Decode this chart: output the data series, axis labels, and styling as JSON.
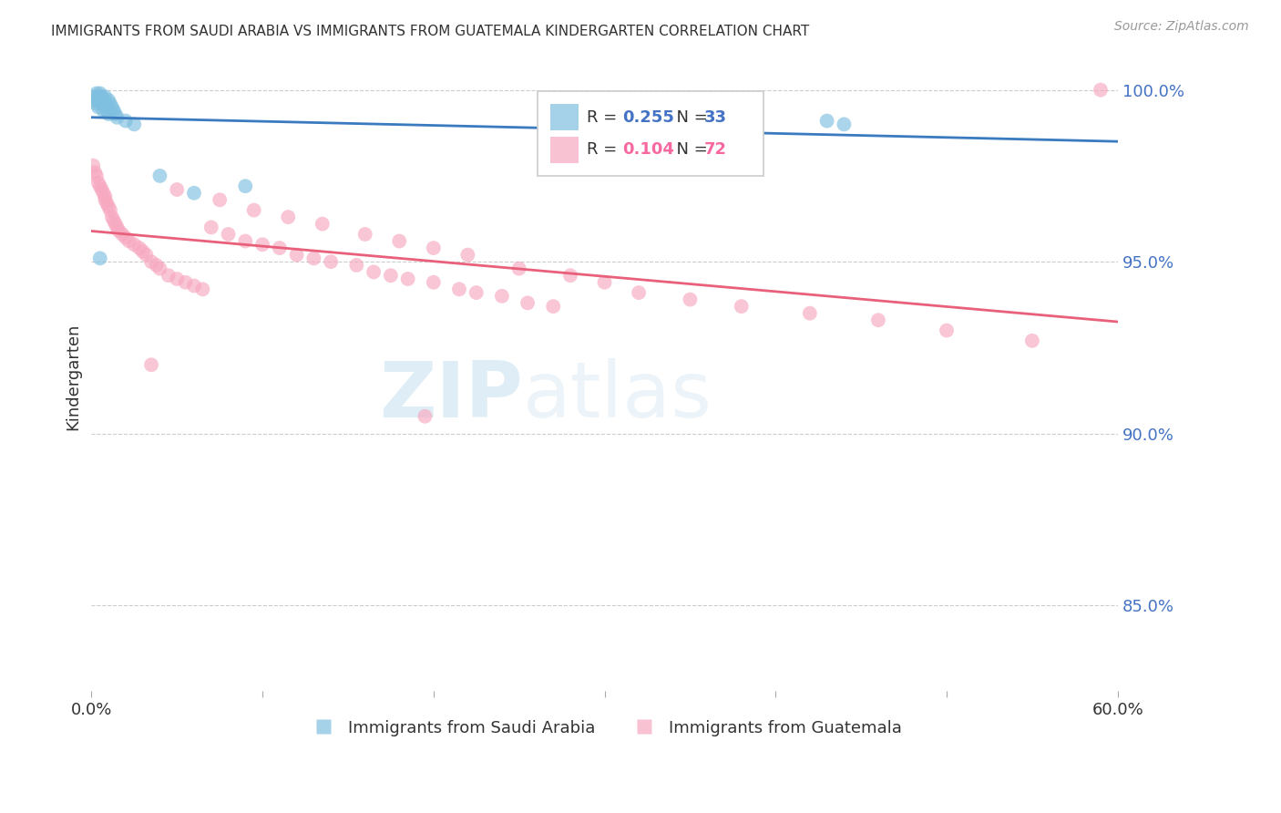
{
  "title": "IMMIGRANTS FROM SAUDI ARABIA VS IMMIGRANTS FROM GUATEMALA KINDERGARTEN CORRELATION CHART",
  "source": "Source: ZipAtlas.com",
  "ylabel": "Kindergarten",
  "watermark": "ZIPatlas",
  "xlim": [
    0.0,
    0.6
  ],
  "ylim": [
    0.825,
    1.008
  ],
  "yticks": [
    0.85,
    0.9,
    0.95,
    1.0
  ],
  "ytick_labels": [
    "85.0%",
    "90.0%",
    "95.0%",
    "100.0%"
  ],
  "xtick_labels": [
    "0.0%",
    "",
    "",
    "",
    "",
    "",
    "60.0%"
  ],
  "saudi_R": 0.255,
  "saudi_N": 33,
  "guate_R": 0.104,
  "guate_N": 72,
  "saudi_color": "#7fbfdf",
  "guate_color": "#f7a8c0",
  "saudi_line_color": "#3a7abf",
  "guate_line_color": "#e8607a",
  "background_color": "#ffffff",
  "grid_color": "#cccccc",
  "saudi_x": [
    0.001,
    0.002,
    0.003,
    0.003,
    0.004,
    0.004,
    0.005,
    0.005,
    0.006,
    0.006,
    0.007,
    0.007,
    0.008,
    0.008,
    0.009,
    0.009,
    0.01,
    0.01,
    0.011,
    0.012,
    0.013,
    0.014,
    0.015,
    0.02,
    0.025,
    0.04,
    0.06,
    0.09,
    0.33,
    0.335,
    0.43,
    0.44,
    0.005
  ],
  "saudi_y": [
    0.998,
    0.997,
    0.999,
    0.996,
    0.998,
    0.995,
    0.999,
    0.997,
    0.998,
    0.996,
    0.997,
    0.994,
    0.998,
    0.996,
    0.995,
    0.994,
    0.997,
    0.993,
    0.996,
    0.995,
    0.994,
    0.993,
    0.992,
    0.991,
    0.99,
    0.975,
    0.97,
    0.972,
    0.988,
    0.989,
    0.991,
    0.99,
    0.951
  ],
  "guate_x": [
    0.001,
    0.002,
    0.003,
    0.004,
    0.005,
    0.006,
    0.007,
    0.008,
    0.008,
    0.009,
    0.01,
    0.011,
    0.012,
    0.013,
    0.014,
    0.015,
    0.016,
    0.018,
    0.02,
    0.022,
    0.025,
    0.028,
    0.03,
    0.032,
    0.035,
    0.038,
    0.04,
    0.045,
    0.05,
    0.055,
    0.06,
    0.065,
    0.07,
    0.08,
    0.09,
    0.1,
    0.11,
    0.12,
    0.13,
    0.14,
    0.155,
    0.165,
    0.175,
    0.185,
    0.2,
    0.215,
    0.225,
    0.24,
    0.255,
    0.27,
    0.05,
    0.075,
    0.095,
    0.115,
    0.135,
    0.16,
    0.18,
    0.2,
    0.22,
    0.25,
    0.28,
    0.3,
    0.32,
    0.35,
    0.38,
    0.42,
    0.46,
    0.5,
    0.55,
    0.59,
    0.035,
    0.195
  ],
  "guate_y": [
    0.978,
    0.976,
    0.975,
    0.973,
    0.972,
    0.971,
    0.97,
    0.969,
    0.968,
    0.967,
    0.966,
    0.965,
    0.963,
    0.962,
    0.961,
    0.96,
    0.959,
    0.958,
    0.957,
    0.956,
    0.955,
    0.954,
    0.953,
    0.952,
    0.95,
    0.949,
    0.948,
    0.946,
    0.945,
    0.944,
    0.943,
    0.942,
    0.96,
    0.958,
    0.956,
    0.955,
    0.954,
    0.952,
    0.951,
    0.95,
    0.949,
    0.947,
    0.946,
    0.945,
    0.944,
    0.942,
    0.941,
    0.94,
    0.938,
    0.937,
    0.971,
    0.968,
    0.965,
    0.963,
    0.961,
    0.958,
    0.956,
    0.954,
    0.952,
    0.948,
    0.946,
    0.944,
    0.941,
    0.939,
    0.937,
    0.935,
    0.933,
    0.93,
    0.927,
    1.0,
    0.92,
    0.905
  ]
}
